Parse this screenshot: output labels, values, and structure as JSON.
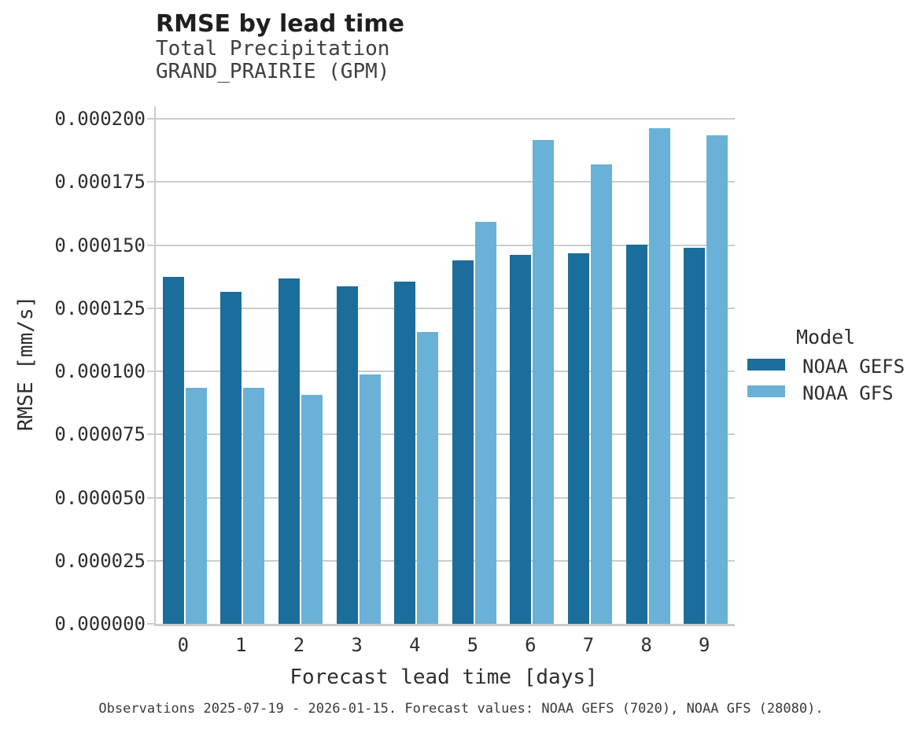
{
  "header": {
    "title": "RMSE by lead time",
    "subtitle1": "Total Precipitation",
    "subtitle2": "GRAND_PRAIRIE (GPM)"
  },
  "legend": {
    "title": "Model",
    "entries": [
      "NOAA GEFS",
      "NOAA GFS"
    ]
  },
  "footer": {
    "caption": "Observations 2025-07-19 - 2026-01-15. Forecast values: NOAA GEFS (7020), NOAA GFS (28080)."
  },
  "colors": {
    "gefs_dark_blue": "#1b6d9c",
    "gfs_light_blue": "#6ab1d8",
    "gridline_gray": "#cccccc",
    "text_dark": "#2e2e2e"
  },
  "chart_data": {
    "type": "bar",
    "title": "RMSE by lead time",
    "subtitle": [
      "Total Precipitation",
      "GRAND_PRAIRIE (GPM)"
    ],
    "xlabel": "Forecast lead time [days]",
    "ylabel": "RMSE [mm/s]",
    "categories": [
      "0",
      "1",
      "2",
      "3",
      "4",
      "5",
      "6",
      "7",
      "8",
      "9"
    ],
    "series": [
      {
        "name": "NOAA GEFS",
        "color": "#1b6d9c",
        "values": [
          0.0001375,
          0.0001316,
          0.0001368,
          0.0001337,
          0.0001354,
          0.0001438,
          0.0001462,
          0.0001469,
          0.0001503,
          0.0001488
        ]
      },
      {
        "name": "NOAA GFS",
        "color": "#6ab1d8",
        "values": [
          9.36e-05,
          9.36e-05,
          9.06e-05,
          9.88e-05,
          0.0001155,
          0.0001591,
          0.0001917,
          0.000182,
          0.0001962,
          0.0001935
        ]
      }
    ],
    "ylim": [
      0,
      0.000205
    ],
    "yticks": [
      0,
      2.5e-05,
      5e-05,
      7.5e-05,
      0.0001,
      0.000125,
      0.00015,
      0.000175,
      0.0002
    ],
    "ytick_labels": [
      "0.000000",
      "0.000025",
      "0.000050",
      "0.000075",
      "0.000100",
      "0.000125",
      "0.000150",
      "0.000175",
      "0.000200"
    ],
    "legend_title": "Model",
    "legend_position": "right",
    "grid": true,
    "caption": "Observations 2025-07-19 - 2026-01-15. Forecast values: NOAA GEFS (7020), NOAA GFS (28080)."
  }
}
